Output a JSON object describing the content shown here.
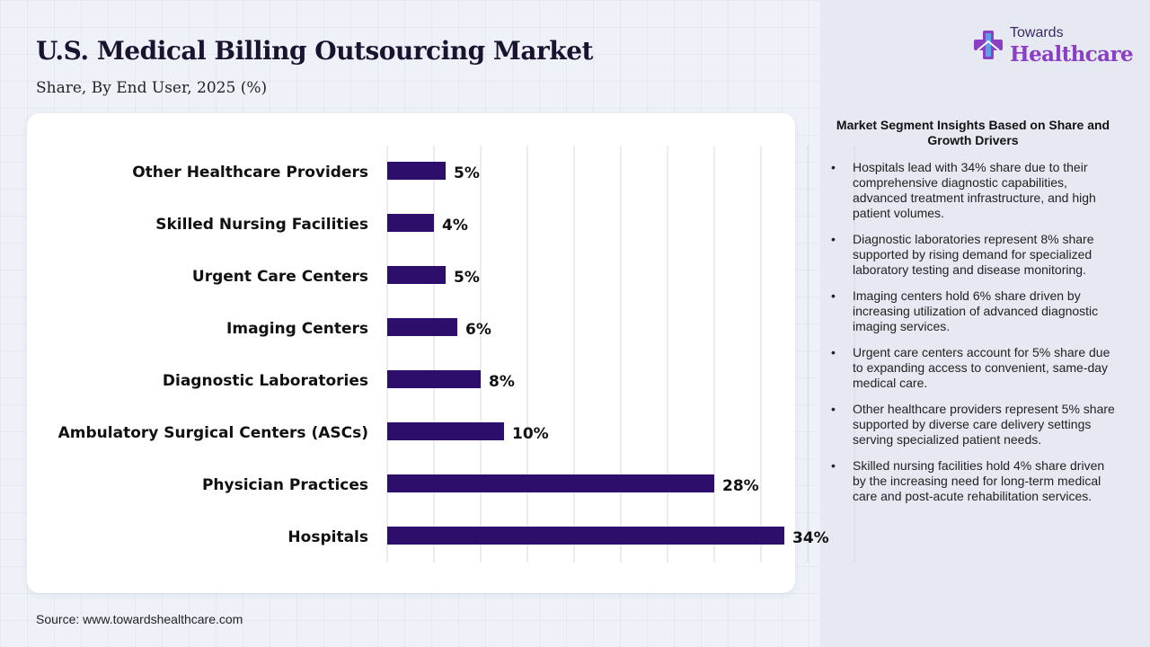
{
  "title": "U.S. Medical Billing Outsourcing Market",
  "subtitle": "Share, By End User, 2025 (%)",
  "source": "Source: www.towardshealthcare.com",
  "logo": {
    "top": "Towards",
    "main": "Healthcare"
  },
  "colors": {
    "bar": "#2d0f6b",
    "grid": "#d8d8de",
    "accent": "#8a3fc4"
  },
  "chart_data": {
    "type": "bar",
    "orientation": "horizontal",
    "categories": [
      "Other Healthcare Providers",
      "Skilled Nursing Facilities",
      "Urgent Care Centers",
      "Imaging Centers",
      "Diagnostic Laboratories",
      "Ambulatory Surgical Centers (ASCs)",
      "Physician Practices",
      "Hospitals"
    ],
    "values": [
      5,
      4,
      5,
      6,
      8,
      10,
      28,
      34
    ],
    "data_labels": [
      "5%",
      "4%",
      "5%",
      "6%",
      "8%",
      "10%",
      "28%",
      "34%"
    ],
    "xlim": [
      0,
      40
    ],
    "grid": true,
    "legend": "none"
  },
  "insights": {
    "title": "Market Segment Insights Based on Share and Growth Drivers",
    "bullet": "•",
    "items": [
      "Hospitals lead with 34% share due to their comprehensive diagnostic capabilities, advanced treatment infrastructure, and high patient volumes.",
      "Diagnostic laboratories represent 8% share supported by rising demand for specialized laboratory testing and disease monitoring.",
      "Imaging centers hold 6% share driven by increasing utilization of advanced diagnostic imaging services.",
      "Urgent care centers account for 5% share due to expanding access to convenient, same-day medical care.",
      "Other healthcare providers represent 5% share supported by diverse care delivery settings serving specialized patient needs.",
      "Skilled nursing facilities hold 4% share driven by the increasing need for long-term medical care and post-acute rehabilitation services."
    ]
  }
}
